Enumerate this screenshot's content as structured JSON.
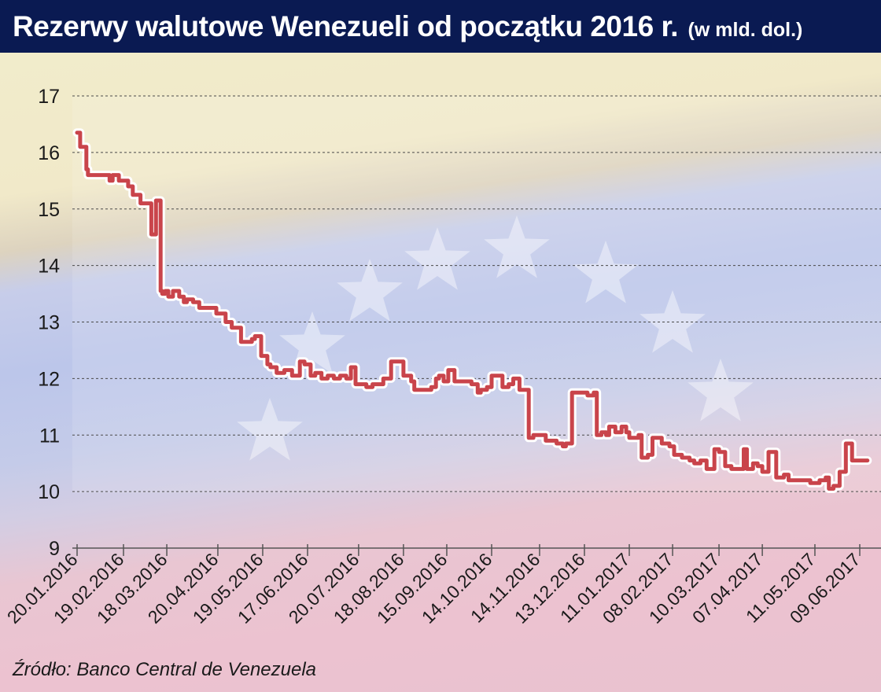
{
  "header": {
    "title": "Rezerwy walutowe Wenezueli od początku 2016 r.",
    "unit": "(w mld. dol.)"
  },
  "source": "Źródło: Banco Central de Venezuela",
  "colors": {
    "title_bar": "#0a1a52",
    "line": "#c9444b",
    "line_halo": "#ffffff",
    "background_top": "#f1edcc",
    "background_middle": "#bcc6ea",
    "background_bottom": "#ecc2d0"
  },
  "chart_data": {
    "type": "line",
    "title": "Rezerwy walutowe Wenezueli od początku 2016 r.",
    "ylabel": "",
    "xlabel": "",
    "ylim": [
      9,
      17
    ],
    "yticks": [
      9,
      10,
      11,
      12,
      13,
      14,
      15,
      16,
      17
    ],
    "grid": "horizontal dashed",
    "legend": "none",
    "xticks": [
      "20.01.2016",
      "19.02.2016",
      "18.03.2016",
      "20.04.2016",
      "19.05.2016",
      "17.06.2016",
      "20.07.2016",
      "18.08.2016",
      "15.09.2016",
      "14.10.2016",
      "14.11.2016",
      "13.12.2016",
      "11.01.2017",
      "08.02.2017",
      "10.03.2017",
      "07.04.2017",
      "11.05.2017",
      "09.06.2017"
    ],
    "series": [
      {
        "x": [
          "2016-01-20",
          "2016-01-22",
          "2016-01-23",
          "2016-01-26",
          "2016-01-27",
          "2016-02-05",
          "2016-02-10",
          "2016-02-12",
          "2016-02-16",
          "2016-02-22",
          "2016-02-25",
          "2016-03-01",
          "2016-03-03",
          "2016-03-08",
          "2016-03-10",
          "2016-03-11",
          "2016-03-14",
          "2016-03-15",
          "2016-03-17",
          "2016-03-19",
          "2016-03-22",
          "2016-03-26",
          "2016-03-29",
          "2016-03-31",
          "2016-04-04",
          "2016-04-08",
          "2016-04-15",
          "2016-04-19",
          "2016-04-21",
          "2016-04-25",
          "2016-04-29",
          "2016-05-05",
          "2016-05-10",
          "2016-05-12",
          "2016-05-14",
          "2016-05-16",
          "2016-05-18",
          "2016-05-22",
          "2016-05-24",
          "2016-05-28",
          "2016-06-02",
          "2016-06-07",
          "2016-06-12",
          "2016-06-15",
          "2016-06-19",
          "2016-06-22",
          "2016-06-26",
          "2016-06-30",
          "2016-07-04",
          "2016-07-08",
          "2016-07-12",
          "2016-07-15",
          "2016-07-18",
          "2016-07-20",
          "2016-07-25",
          "2016-07-29",
          "2016-08-01",
          "2016-08-05",
          "2016-08-10",
          "2016-08-12",
          "2016-08-15",
          "2016-08-18",
          "2016-08-23",
          "2016-08-25",
          "2016-08-30",
          "2016-09-05",
          "2016-09-08",
          "2016-09-10",
          "2016-09-13",
          "2016-09-16",
          "2016-09-20",
          "2016-09-23",
          "2016-09-28",
          "2016-10-01",
          "2016-10-05",
          "2016-10-07",
          "2016-10-11",
          "2016-10-14",
          "2016-10-19",
          "2016-10-21",
          "2016-10-25",
          "2016-10-28",
          "2016-11-01",
          "2016-11-03",
          "2016-11-07",
          "2016-11-10",
          "2016-11-14",
          "2016-11-18",
          "2016-11-23",
          "2016-11-25",
          "2016-11-29",
          "2016-12-01",
          "2016-12-05",
          "2016-12-09",
          "2016-12-13",
          "2016-12-15",
          "2016-12-19",
          "2016-12-21",
          "2016-12-24",
          "2016-12-27",
          "2016-12-29",
          "2017-01-02",
          "2017-01-06",
          "2017-01-09",
          "2017-01-11",
          "2017-01-14",
          "2017-01-17",
          "2017-01-19",
          "2017-01-23",
          "2017-01-26",
          "2017-02-01",
          "2017-02-06",
          "2017-02-09",
          "2017-02-14",
          "2017-02-19",
          "2017-02-22",
          "2017-02-26",
          "2017-03-02",
          "2017-03-07",
          "2017-03-10",
          "2017-03-14",
          "2017-03-18",
          "2017-03-23",
          "2017-03-26",
          "2017-03-28",
          "2017-04-01",
          "2017-04-04",
          "2017-04-07",
          "2017-04-11",
          "2017-04-14",
          "2017-04-16",
          "2017-04-21",
          "2017-04-24",
          "2017-04-29",
          "2017-05-02",
          "2017-05-08",
          "2017-05-12",
          "2017-05-14",
          "2017-05-18",
          "2017-05-20",
          "2017-05-23",
          "2017-05-27",
          "2017-05-31",
          "2017-06-04",
          "2017-06-09",
          "2017-06-14"
        ],
        "values": [
          16.35,
          16.1,
          16.1,
          15.7,
          15.6,
          15.6,
          15.5,
          15.6,
          15.5,
          15.4,
          15.25,
          15.1,
          15.1,
          14.55,
          14.55,
          15.15,
          13.55,
          13.5,
          13.55,
          13.45,
          13.55,
          13.45,
          13.35,
          13.4,
          13.35,
          13.25,
          13.25,
          13.15,
          13.15,
          13.0,
          12.9,
          12.65,
          12.65,
          12.7,
          12.75,
          12.75,
          12.4,
          12.25,
          12.2,
          12.1,
          12.15,
          12.05,
          12.3,
          12.25,
          12.05,
          12.1,
          12.0,
          12.05,
          12.0,
          12.05,
          12.0,
          12.2,
          11.9,
          11.9,
          11.85,
          11.9,
          11.9,
          12.0,
          12.3,
          12.3,
          12.3,
          12.05,
          11.95,
          11.8,
          11.8,
          11.85,
          12.0,
          12.05,
          11.95,
          12.15,
          11.95,
          11.95,
          11.95,
          11.9,
          11.75,
          11.8,
          11.85,
          12.05,
          12.05,
          11.85,
          11.9,
          12.0,
          11.8,
          11.8,
          10.95,
          11.0,
          11.0,
          10.9,
          10.9,
          10.85,
          10.8,
          10.85,
          11.75,
          11.75,
          11.75,
          11.7,
          11.75,
          11.0,
          11.05,
          11.0,
          11.15,
          11.05,
          11.15,
          11.05,
          10.95,
          10.95,
          11.0,
          10.6,
          10.65,
          10.95,
          10.85,
          10.8,
          10.65,
          10.6,
          10.55,
          10.5,
          10.55,
          10.4,
          10.75,
          10.7,
          10.45,
          10.4,
          10.4,
          10.75,
          10.4,
          10.5,
          10.45,
          10.35,
          10.7,
          10.7,
          10.25,
          10.3,
          10.2,
          10.2,
          10.2,
          10.15,
          10.15,
          10.2,
          10.25,
          10.05,
          10.1,
          10.35,
          10.85,
          10.55,
          10.55,
          10.55
        ]
      }
    ]
  }
}
